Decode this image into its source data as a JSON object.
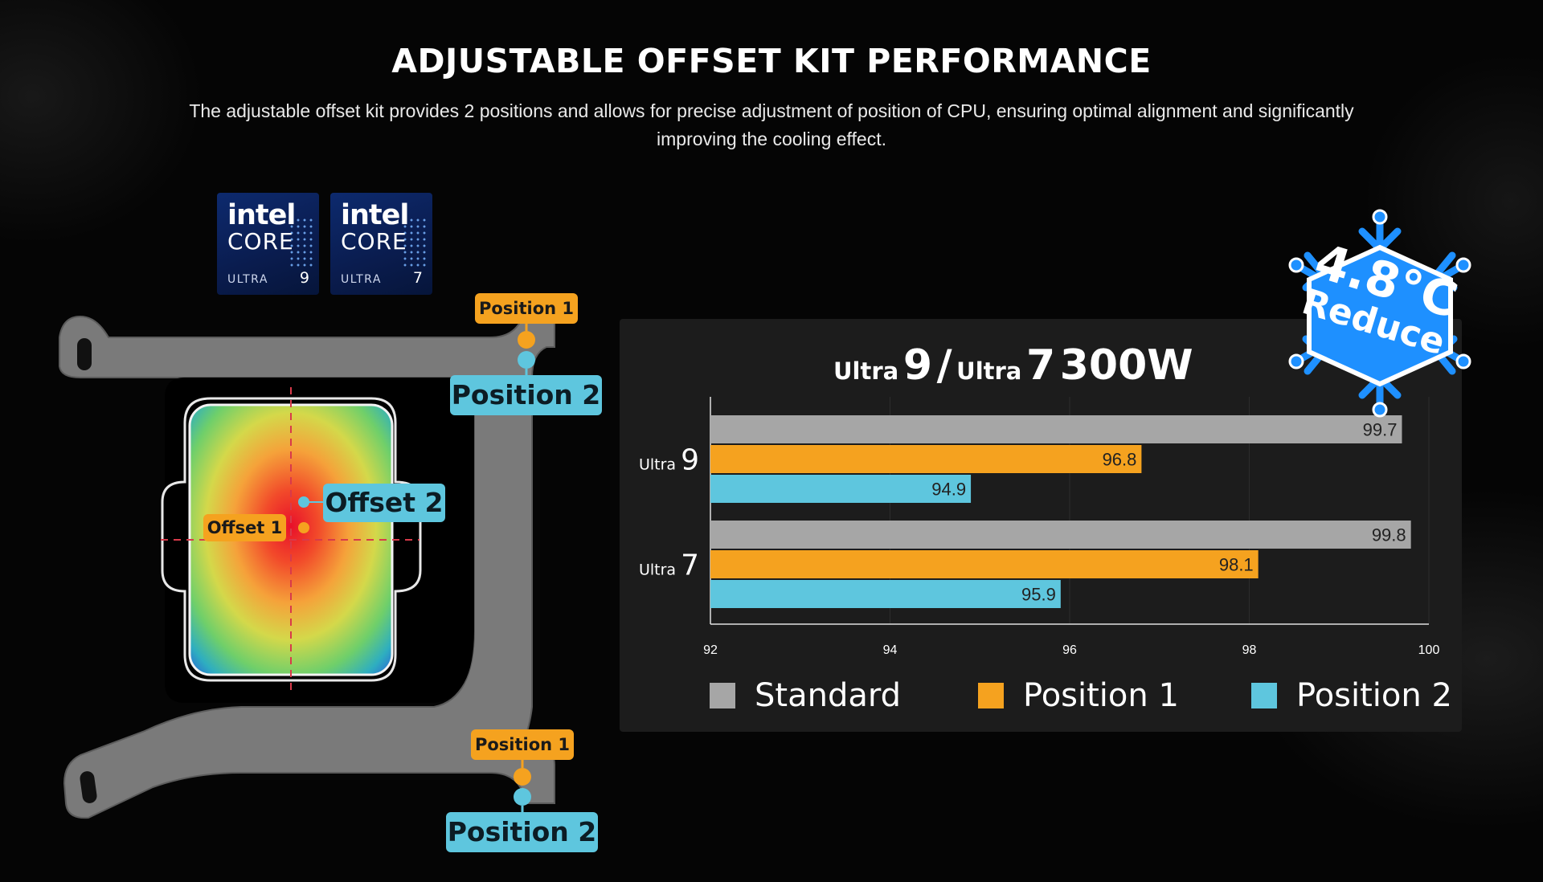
{
  "header": {
    "title": "ADJUSTABLE OFFSET KIT PERFORMANCE",
    "subtitle": "The adjustable offset kit provides 2 positions and allows for precise adjustment of position of CPU, ensuring optimal alignment and significantly improving the cooling effect."
  },
  "badges": [
    {
      "brand": "intel",
      "line": "CORE",
      "tier": "ULTRA",
      "number": "9"
    },
    {
      "brand": "intel",
      "line": "CORE",
      "tier": "ULTRA",
      "number": "7"
    }
  ],
  "diagram": {
    "top_position_1": "Position 1",
    "top_position_2": "Position 2",
    "bottom_position_1": "Position 1",
    "bottom_position_2": "Position 2",
    "offset_1": "Offset 1",
    "offset_2": "Offset 2"
  },
  "reduce_badge": {
    "value": "4.8°C",
    "label": "Reduce",
    "color": "#1e90ff"
  },
  "colors": {
    "standard": "#a6a6a6",
    "position1": "#f5a21f",
    "position2": "#5ec6de",
    "panel": "#1c1c1c"
  },
  "chart_data": {
    "type": "bar",
    "orientation": "horizontal",
    "title_parts": {
      "a_small": "Ultra",
      "a_big": "9",
      "sep": "/",
      "b_small": "Ultra",
      "b_big": "7",
      "rest": "300W"
    },
    "categories": [
      {
        "small": "Ultra",
        "big": "9"
      },
      {
        "small": "Ultra",
        "big": "7"
      }
    ],
    "series": [
      {
        "name": "Standard",
        "values": [
          99.7,
          99.8
        ]
      },
      {
        "name": "Position 1",
        "values": [
          96.8,
          98.1
        ]
      },
      {
        "name": "Position 2",
        "values": [
          94.9,
          95.9
        ]
      }
    ],
    "xlim": [
      92,
      100
    ],
    "xticks": [
      92,
      94,
      96,
      98,
      100
    ],
    "legend_position": "bottom",
    "grid": true
  }
}
